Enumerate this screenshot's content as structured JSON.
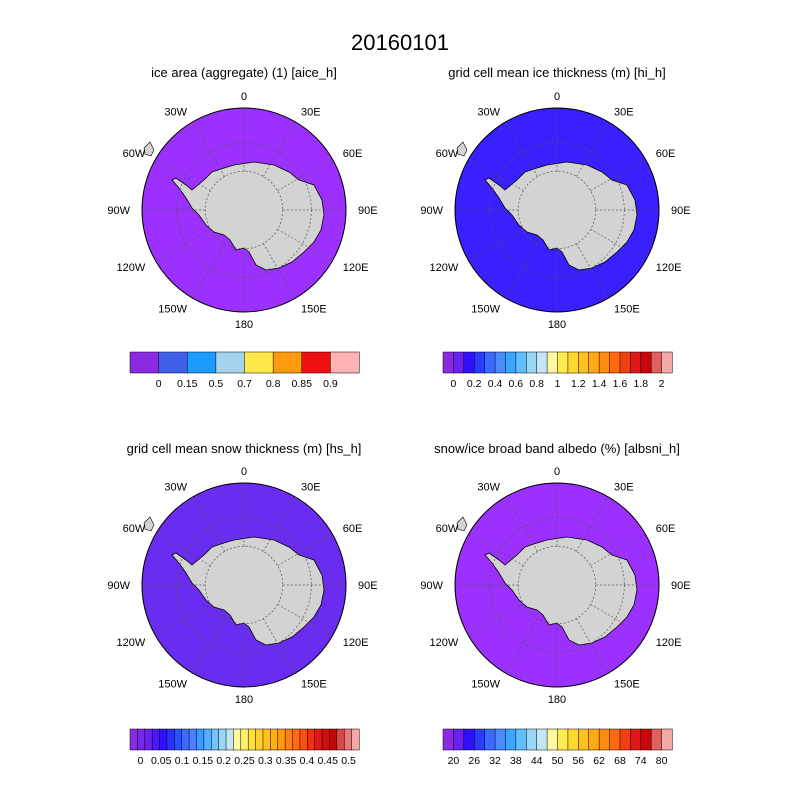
{
  "title": "20160101",
  "longitude_labels": [
    "0",
    "30E",
    "60E",
    "90E",
    "120E",
    "150E",
    "180",
    "150W",
    "120W",
    "90W",
    "60W",
    "30W"
  ],
  "panels": [
    {
      "id": "aice",
      "title": "ice area  (aggregate) (1)  [aice_h]",
      "open_ocean_color": "#9b30ff",
      "colorbar": {
        "colors": [
          "#8a2be2",
          "#3f5fe8",
          "#1e9bff",
          "#a4d3ee",
          "#ffe84a",
          "#ff9a10",
          "#ee1010",
          "#ffb3b3"
        ],
        "labels": [
          "0",
          "0.15",
          "0.5",
          "0.7",
          "0.8",
          "0.85",
          "0.9"
        ]
      }
    },
    {
      "id": "hi",
      "title": "grid cell mean ice thickness (m)  [hi_h]",
      "open_ocean_color": "#3a1fff",
      "colorbar": {
        "colors": [
          "#8a2be2",
          "#6a20f0",
          "#3010ff",
          "#2a3cff",
          "#3a6aff",
          "#4a8aff",
          "#3aa6ff",
          "#60c0ff",
          "#9ad6f6",
          "#c4e6f4",
          "#fff8a0",
          "#ffea50",
          "#ffd830",
          "#ffc020",
          "#ffa818",
          "#ff8a10",
          "#ff6a10",
          "#f04010",
          "#e01818",
          "#c80808",
          "#e06060",
          "#f4a8a8"
        ],
        "labels": [
          "0",
          "0.2",
          "0.4",
          "0.6",
          "0.8",
          "1",
          "1.2",
          "1.4",
          "1.6",
          "1.8",
          "2"
        ]
      }
    },
    {
      "id": "hs",
      "title": "grid cell mean snow thickness (m)  [hs_h]",
      "open_ocean_color": "#6a2cf0",
      "colorbar": {
        "colors": [
          "#8a2be2",
          "#7a26ea",
          "#6a20f0",
          "#4a18fa",
          "#3010ff",
          "#2a30ff",
          "#2a50ff",
          "#3a6aff",
          "#4a80ff",
          "#3a9aff",
          "#50b0ff",
          "#70c4ff",
          "#9ad6f6",
          "#c4e6f4",
          "#fff8a0",
          "#fff070",
          "#ffe040",
          "#ffd030",
          "#ffc020",
          "#ffb018",
          "#ff9a10",
          "#ff8010",
          "#ff6a10",
          "#f85010",
          "#f03010",
          "#e01818",
          "#d01010",
          "#c00808",
          "#d84848",
          "#e87878",
          "#f4a8a8"
        ],
        "labels": [
          "0",
          "0.05",
          "0.1",
          "0.15",
          "0.2",
          "0.25",
          "0.3",
          "0.35",
          "0.4",
          "0.45",
          "0.5"
        ]
      }
    },
    {
      "id": "albsni",
      "title": "snow/ice broad band albedo (%)  [albsni_h]",
      "open_ocean_color": "#9b30ff",
      "colorbar": {
        "colors": [
          "#8a2be2",
          "#6a20f0",
          "#3010ff",
          "#2a3cff",
          "#3a6aff",
          "#4a8aff",
          "#3aa6ff",
          "#60c0ff",
          "#9ad6f6",
          "#c4e6f4",
          "#fff8a0",
          "#ffea50",
          "#ffd830",
          "#ffc020",
          "#ffa818",
          "#ff8a10",
          "#ff6a10",
          "#f04010",
          "#e01818",
          "#c80808",
          "#e06060",
          "#f4a8a8"
        ],
        "labels": [
          "20",
          "26",
          "32",
          "38",
          "44",
          "50",
          "56",
          "62",
          "68",
          "74",
          "80"
        ]
      }
    }
  ]
}
